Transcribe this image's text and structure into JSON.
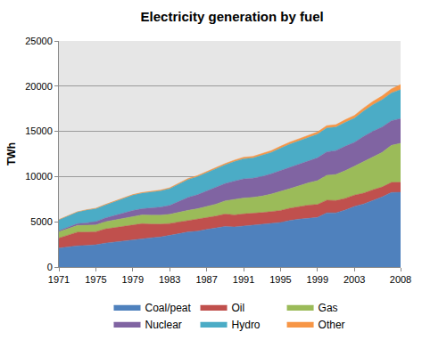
{
  "chart_data": {
    "type": "area",
    "stacked": true,
    "title": "Electricity generation by fuel",
    "y_label": "TWh",
    "x": [
      1971,
      1972,
      1973,
      1974,
      1975,
      1976,
      1977,
      1978,
      1979,
      1980,
      1981,
      1982,
      1983,
      1984,
      1985,
      1986,
      1987,
      1988,
      1989,
      1990,
      1991,
      1992,
      1993,
      1994,
      1995,
      1996,
      1997,
      1998,
      1999,
      2000,
      2001,
      2002,
      2003,
      2004,
      2005,
      2006,
      2007,
      2008
    ],
    "xlim": [
      1971,
      2008
    ],
    "xticks": [
      1971,
      1975,
      1979,
      1983,
      1987,
      1991,
      1995,
      1999,
      2003,
      2008
    ],
    "ylim": [
      0,
      25000
    ],
    "yticks": [
      0,
      5000,
      10000,
      15000,
      20000,
      25000
    ],
    "grid": true,
    "legend": "bottom",
    "series": [
      {
        "name": "Coal/peat",
        "color": "#4f81bd",
        "values": [
          2100,
          2230,
          2340,
          2380,
          2450,
          2640,
          2760,
          2880,
          3050,
          3160,
          3230,
          3320,
          3470,
          3680,
          3880,
          3960,
          4150,
          4290,
          4480,
          4430,
          4530,
          4600,
          4730,
          4790,
          4930,
          5140,
          5300,
          5380,
          5480,
          5990,
          5990,
          6290,
          6700,
          6970,
          7340,
          7750,
          8240,
          8270
        ]
      },
      {
        "name": "Oil",
        "color": "#c0504d",
        "values": [
          1100,
          1260,
          1510,
          1480,
          1450,
          1560,
          1600,
          1640,
          1650,
          1630,
          1520,
          1420,
          1340,
          1300,
          1240,
          1290,
          1300,
          1340,
          1380,
          1330,
          1340,
          1320,
          1290,
          1340,
          1320,
          1360,
          1370,
          1460,
          1440,
          1400,
          1360,
          1300,
          1250,
          1200,
          1200,
          1100,
          1110,
          1110
        ]
      },
      {
        "name": "Gas",
        "color": "#9bbb59",
        "values": [
          700,
          740,
          740,
          760,
          760,
          800,
          830,
          870,
          920,
          970,
          990,
          1000,
          1010,
          1080,
          1150,
          1190,
          1270,
          1320,
          1460,
          1730,
          1760,
          1780,
          1820,
          1940,
          2080,
          2160,
          2310,
          2470,
          2630,
          2750,
          2880,
          3060,
          3200,
          3500,
          3700,
          3830,
          4100,
          4300
        ]
      },
      {
        "name": "Nuclear",
        "color": "#8064a2",
        "values": [
          110,
          150,
          200,
          260,
          360,
          410,
          500,
          590,
          620,
          680,
          800,
          880,
          990,
          1200,
          1430,
          1550,
          1700,
          1860,
          1910,
          2010,
          2110,
          2120,
          2180,
          2240,
          2330,
          2410,
          2390,
          2430,
          2520,
          2590,
          2650,
          2700,
          2640,
          2770,
          2770,
          2800,
          2720,
          2730
        ]
      },
      {
        "name": "Hydro",
        "color": "#4bacc6",
        "values": [
          1200,
          1230,
          1280,
          1410,
          1430,
          1440,
          1500,
          1600,
          1700,
          1720,
          1750,
          1800,
          1860,
          1920,
          1980,
          2000,
          2020,
          2060,
          2070,
          2160,
          2230,
          2230,
          2340,
          2360,
          2480,
          2520,
          2580,
          2590,
          2610,
          2640,
          2590,
          2640,
          2660,
          2800,
          2930,
          3030,
          3080,
          3210
        ]
      },
      {
        "name": "Other",
        "color": "#f79646",
        "values": [
          40,
          40,
          40,
          45,
          50,
          55,
          60,
          65,
          70,
          75,
          80,
          85,
          90,
          100,
          110,
          115,
          120,
          130,
          140,
          160,
          170,
          180,
          190,
          200,
          210,
          220,
          230,
          240,
          250,
          260,
          270,
          290,
          310,
          340,
          370,
          400,
          440,
          560
        ]
      }
    ]
  }
}
